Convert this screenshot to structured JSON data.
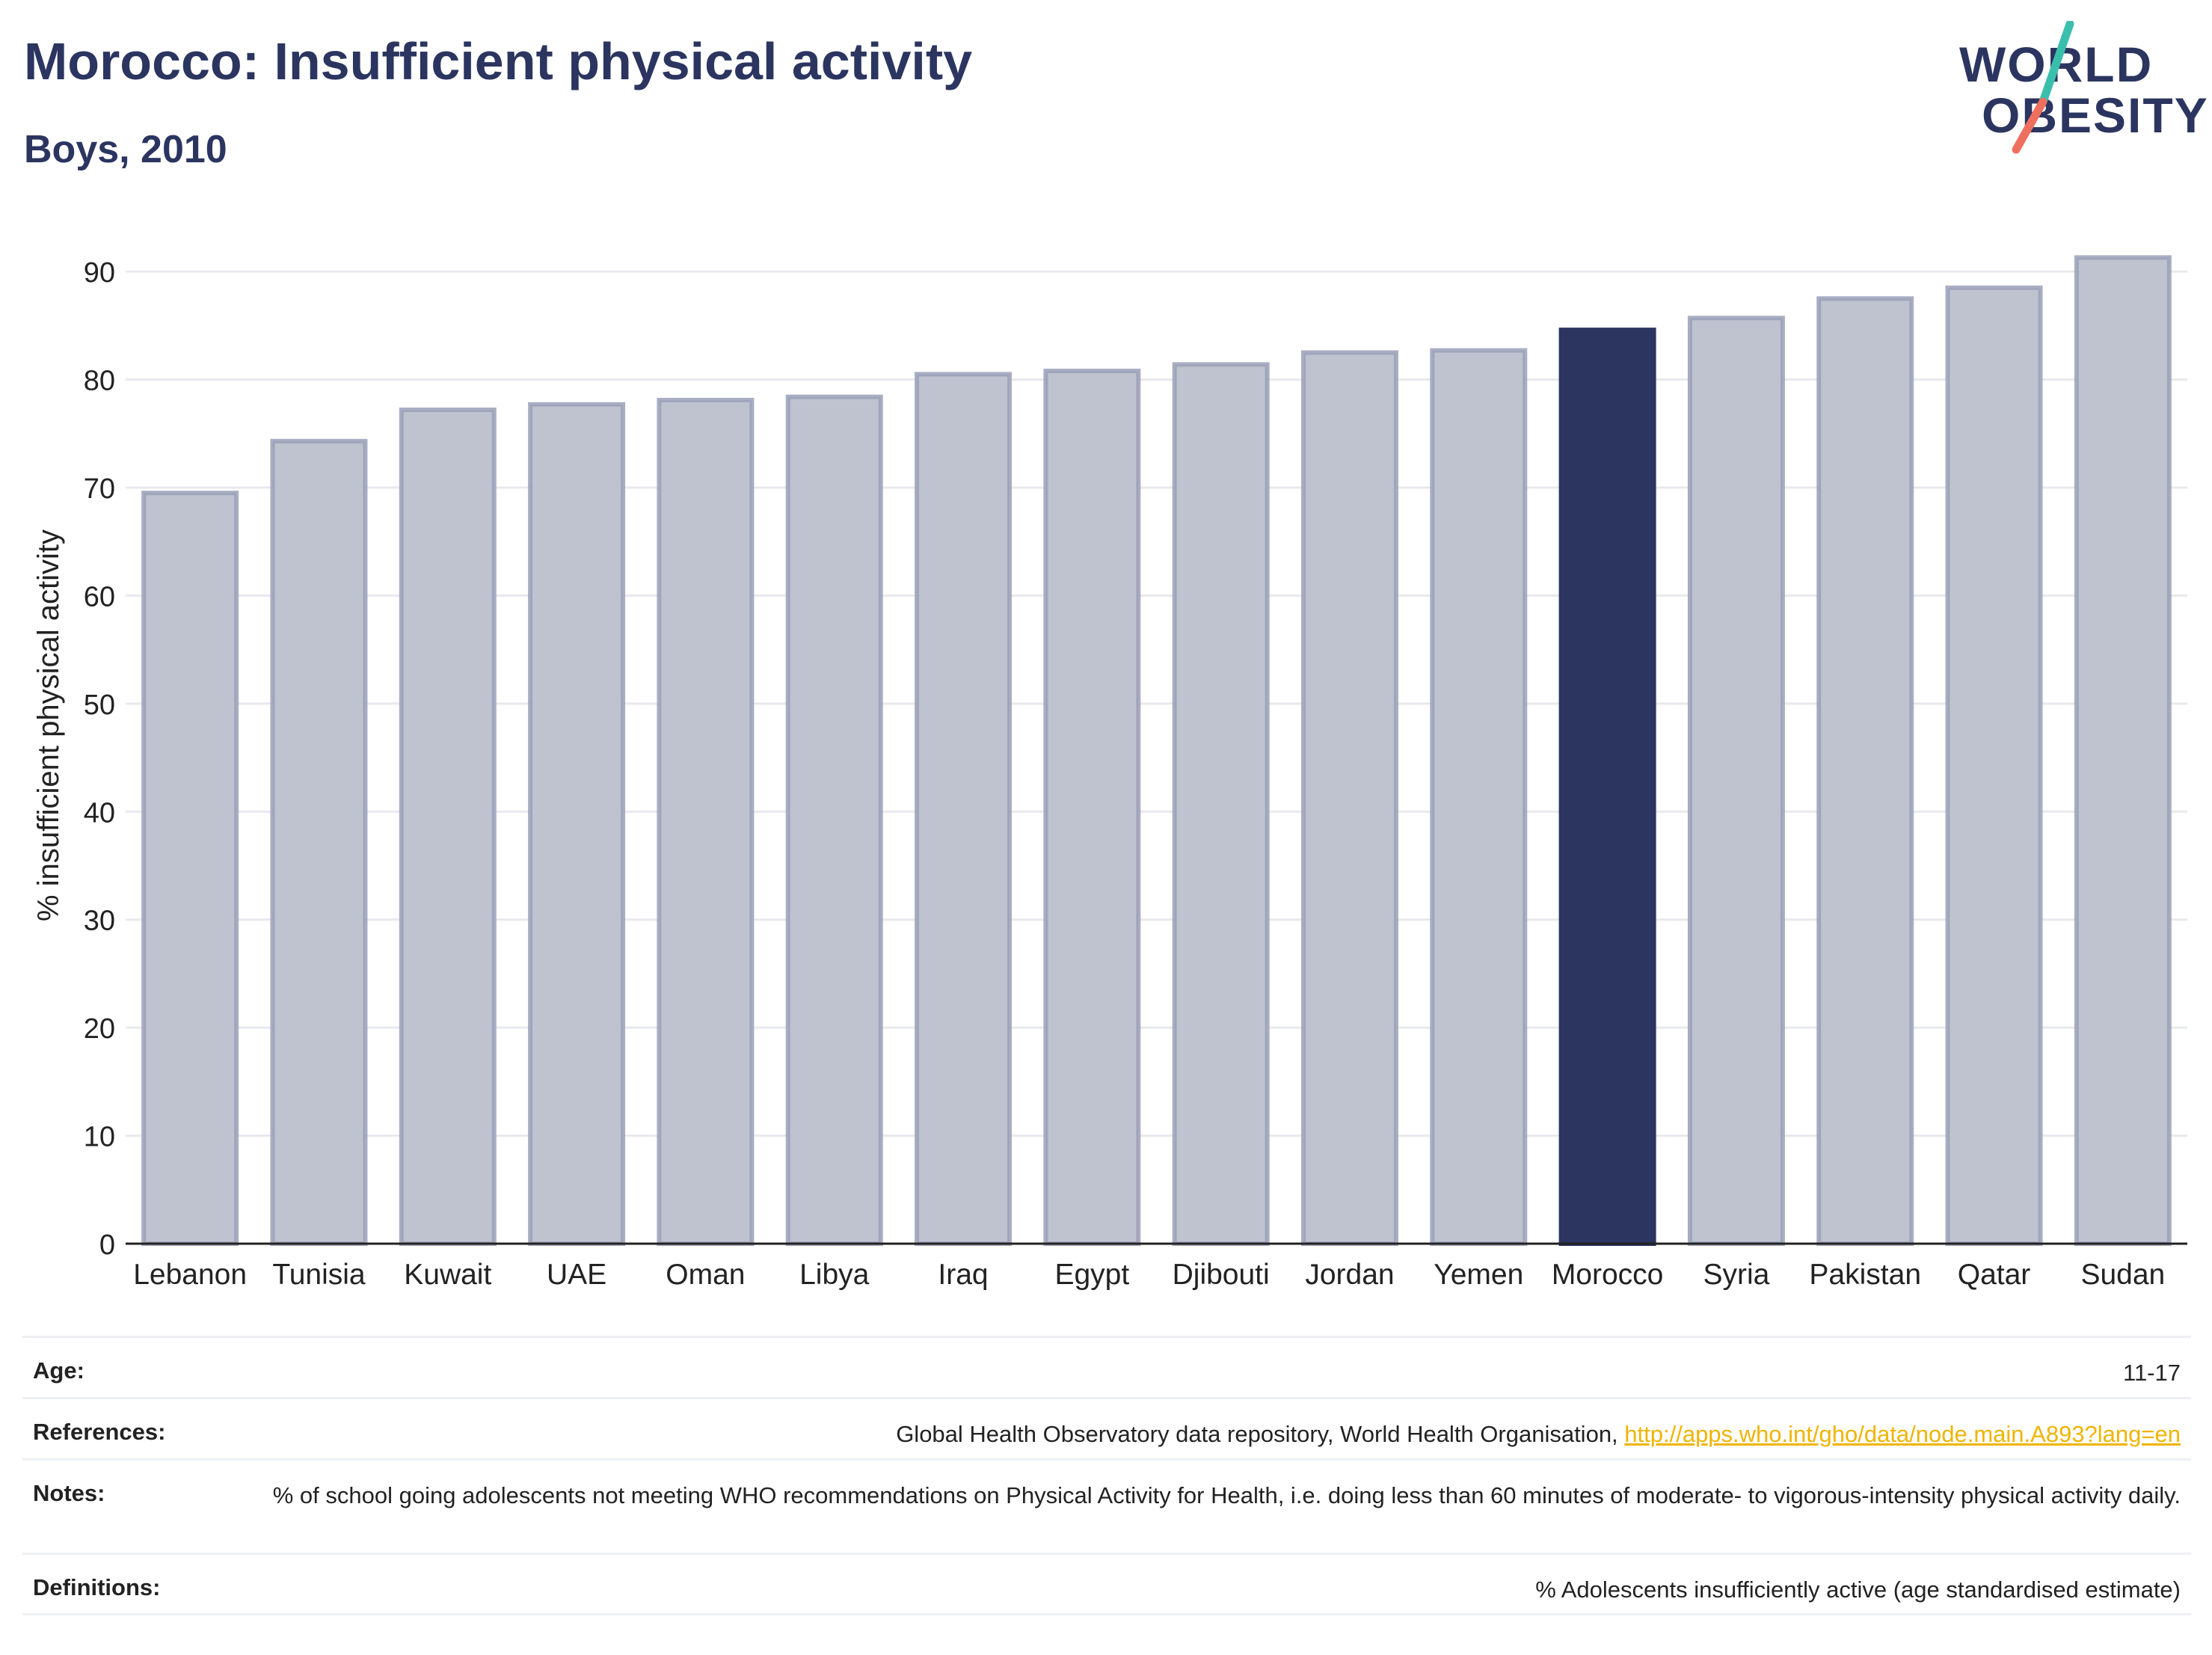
{
  "header": {
    "title": "Morocco: Insufficient physical activity",
    "subtitle": "Boys, 2010"
  },
  "logo": {
    "line1": "WORLD",
    "line2": "OBESITY",
    "accent_teal": "#3bbfad",
    "accent_red": "#ef6f5e"
  },
  "chart_data": {
    "type": "bar",
    "ylabel": "% insufficient physical activity",
    "ylim": [
      0,
      92
    ],
    "yticks": [
      0,
      10,
      20,
      30,
      40,
      50,
      60,
      70,
      80,
      90
    ],
    "grid": true,
    "categories": [
      "Lebanon",
      "Tunisia",
      "Kuwait",
      "UAE",
      "Oman",
      "Libya",
      "Iraq",
      "Egypt",
      "Djibouti",
      "Jordan",
      "Yemen",
      "Morocco",
      "Syria",
      "Pakistan",
      "Qatar",
      "Sudan"
    ],
    "values": [
      69.5,
      74.3,
      77.2,
      77.7,
      78.1,
      78.4,
      80.5,
      80.8,
      81.4,
      82.5,
      82.7,
      84.6,
      85.7,
      87.5,
      88.5,
      91.3
    ],
    "highlight": "Morocco",
    "colors": {
      "bar": "#bfc3cf",
      "bar_edge": "#9aa0b9",
      "highlight": "#2b3560",
      "grid": "#e8e9ee",
      "axis": "#222222"
    }
  },
  "info": [
    {
      "label": "Age:",
      "value": "11-17"
    },
    {
      "label": "References:",
      "value": "Global Health Observatory data repository, World Health Organisation, ",
      "link": "http://apps.who.int/gho/data/node.main.A893?lang=en"
    },
    {
      "label": "Notes:",
      "value": "% of school going adolescents not meeting WHO recommendations on Physical Activity for Health, i.e. doing less than 60 minutes of moderate- to vigorous-intensity physical activity daily."
    },
    {
      "label": "Definitions:",
      "value": "% Adolescents insufficiently active (age standardised estimate)"
    }
  ]
}
